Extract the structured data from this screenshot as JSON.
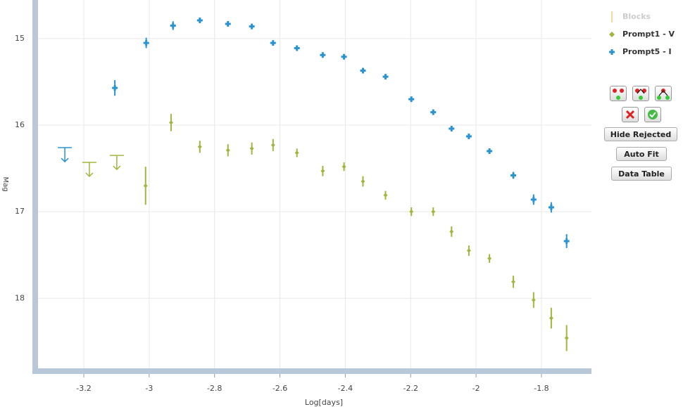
{
  "chart_data": {
    "type": "scatter",
    "x_label": "Log[days]",
    "y_label": "Mag",
    "xlim": [
      -3.34,
      -1.647
    ],
    "ylim": [
      18.81,
      14.554
    ],
    "xticks": [
      -3.2,
      -3,
      -2.8,
      -2.6,
      -2.4,
      -2.2,
      -2,
      -1.8
    ],
    "yticks": [
      15,
      16,
      17,
      18
    ],
    "grid": true,
    "series": [
      {
        "name": "Blocks",
        "color": "#f0d8a8",
        "x": [],
        "values": [],
        "errors": [],
        "limit_x": [],
        "limit_values": []
      },
      {
        "name": "Prompt1 - V",
        "color": "#9fb63f",
        "x": [
          -3.011,
          -2.933,
          -2.845,
          -2.759,
          -2.686,
          -2.621,
          -2.548,
          -2.469,
          -2.404,
          -2.346,
          -2.277,
          -2.198,
          -2.131,
          -2.075,
          -2.022,
          -1.959,
          -1.886,
          -1.824,
          -1.77,
          -1.723
        ],
        "values": [
          16.7,
          15.97,
          16.25,
          16.29,
          16.27,
          16.23,
          16.32,
          16.53,
          16.48,
          16.65,
          16.81,
          17.0,
          17.0,
          17.23,
          17.45,
          17.54,
          17.81,
          18.02,
          18.23,
          18.46
        ],
        "errors": [
          0.22,
          0.1,
          0.07,
          0.07,
          0.07,
          0.07,
          0.05,
          0.06,
          0.05,
          0.06,
          0.05,
          0.05,
          0.05,
          0.06,
          0.06,
          0.05,
          0.07,
          0.09,
          0.12,
          0.15
        ],
        "limit_x": [
          -3.183,
          -3.099
        ],
        "limit_values": [
          16.43,
          16.35
        ]
      },
      {
        "name": "Prompt5 - I",
        "color": "#2a93d0",
        "x": [
          -3.105,
          -3.009,
          -2.927,
          -2.845,
          -2.759,
          -2.686,
          -2.621,
          -2.548,
          -2.469,
          -2.404,
          -2.346,
          -2.277,
          -2.198,
          -2.131,
          -2.075,
          -2.022,
          -1.959,
          -1.886,
          -1.824,
          -1.77,
          -1.723
        ],
        "values": [
          15.57,
          15.05,
          14.85,
          14.79,
          14.83,
          14.86,
          15.05,
          15.11,
          15.19,
          15.21,
          15.37,
          15.44,
          15.7,
          15.85,
          16.04,
          16.13,
          16.3,
          16.58,
          16.86,
          16.95,
          17.34
        ],
        "errors": [
          0.09,
          0.06,
          0.05,
          0.03,
          0.03,
          0.03,
          0.03,
          0.03,
          0.03,
          0.03,
          0.03,
          0.03,
          0.03,
          0.03,
          0.03,
          0.03,
          0.03,
          0.04,
          0.06,
          0.06,
          0.08
        ],
        "limit_x": [
          -3.258
        ],
        "limit_values": [
          16.26
        ]
      }
    ]
  },
  "controls": {
    "buttons": [
      "Hide Rejected",
      "Auto Fit",
      "Data Table"
    ]
  }
}
